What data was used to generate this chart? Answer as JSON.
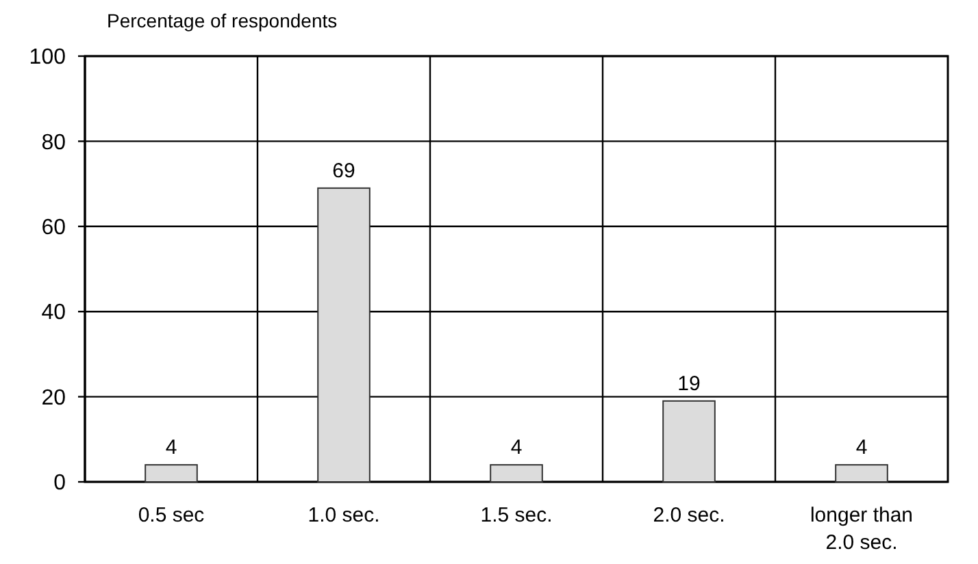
{
  "chart_data": {
    "type": "bar",
    "ylabel": "Percentage of respondents",
    "categories": [
      "0.5 sec",
      "1.0 sec.",
      "1.5 sec.",
      "2.0 sec.",
      "longer than 2.0 sec."
    ],
    "values": [
      4,
      69,
      4,
      19,
      4
    ],
    "color": "#dcdcdc",
    "ylim": [
      0,
      100
    ],
    "yticks": [
      0,
      20,
      40,
      60,
      80,
      100
    ],
    "grid": true,
    "data_labels": true
  }
}
